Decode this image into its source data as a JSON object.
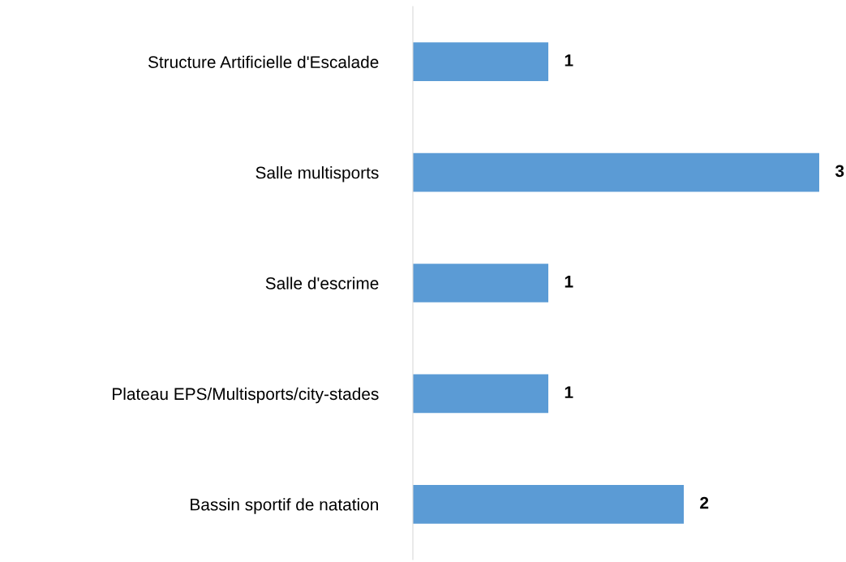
{
  "chart_data": {
    "type": "bar",
    "orientation": "horizontal",
    "categories": [
      "Structure Artificielle d'Escalade",
      "Salle multisports",
      "Salle d'escrime",
      "Plateau EPS/Multisports/city-stades",
      "Bassin sportif de natation"
    ],
    "values": [
      1,
      3,
      1,
      1,
      2
    ],
    "color": "#5b9bd5",
    "data_labels": true,
    "grid": false,
    "legend": false,
    "tick_labels": "y"
  }
}
